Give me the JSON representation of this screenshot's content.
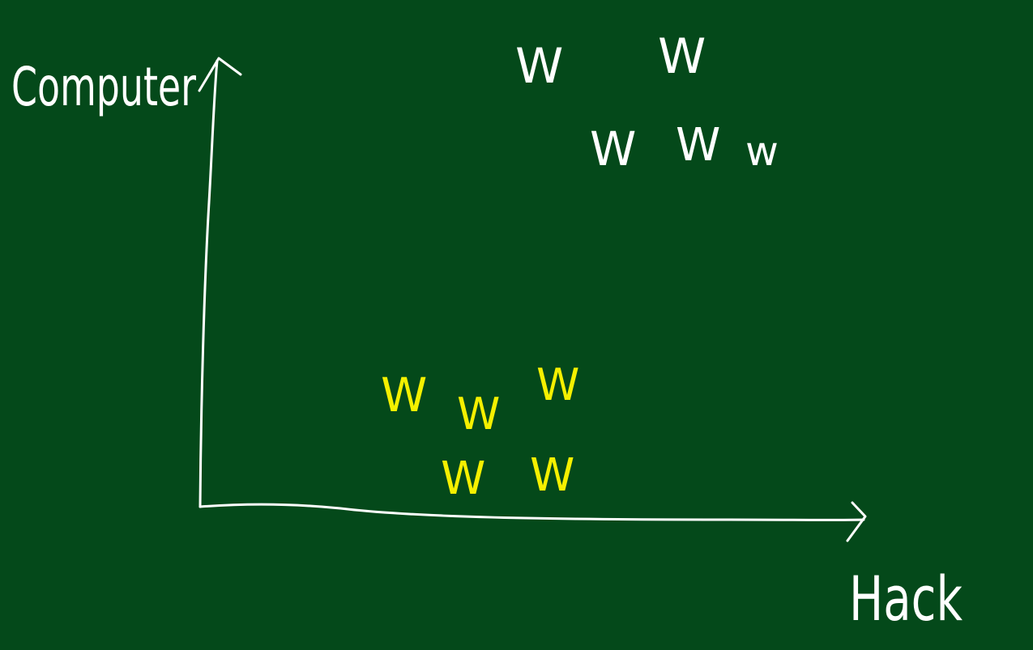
{
  "board": {
    "background": "#04491a"
  },
  "axes": {
    "y_label": "Computer",
    "x_label": "Hack",
    "stroke_color": "#ffffff"
  },
  "clusters": {
    "upper": {
      "color": "#ffffff",
      "marks": [
        "W",
        "W",
        "W",
        "W",
        "w"
      ]
    },
    "lower": {
      "color": "#f5f000",
      "marks": [
        "W",
        "W",
        "W",
        "W",
        "W"
      ]
    }
  }
}
